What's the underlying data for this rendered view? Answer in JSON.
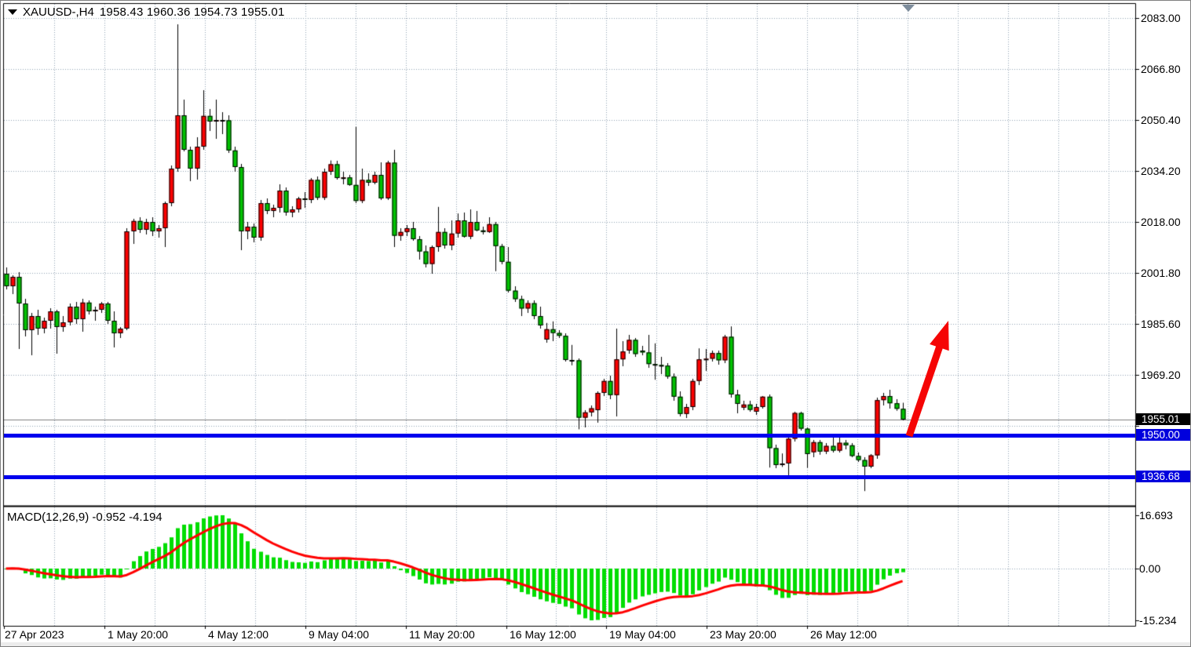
{
  "title": {
    "symbol": "XAUUSD-,H4",
    "open": "1958.43",
    "high": "1960.36",
    "low": "1954.73",
    "close": "1955.01"
  },
  "indicator": {
    "name": "MACD(12,26,9)",
    "main_value": "-0.952",
    "signal_value": "-4.194",
    "axis_labels": [
      "16.693",
      "0.00",
      "-15.234"
    ]
  },
  "price_axis": {
    "gridline_labels": [
      "2083.00",
      "2066.80",
      "2050.40",
      "2034.20",
      "2018.00",
      "2001.80",
      "1985.60",
      "1969.20"
    ],
    "current_price_badge": "1955.01",
    "level_badges": [
      "1950.00",
      "1936.68"
    ]
  },
  "time_axis": {
    "labels": [
      "27 Apr 2023",
      "1 May 20:00",
      "4 May 12:00",
      "9 May 04:00",
      "11 May 20:00",
      "16 May 12:00",
      "19 May 04:00",
      "23 May 20:00",
      "26 May 12:00"
    ]
  },
  "chart_data": {
    "type": "candlestick",
    "symbol": "XAUUSD-",
    "timeframe": "H4",
    "title": "XAUUSD-,H4 1958.43 1960.36 1954.73 1955.01",
    "price_gridlines": [
      2083.0,
      2066.8,
      2050.4,
      2034.2,
      2018.0,
      2001.8,
      1985.6,
      1969.2,
      1953.0
    ],
    "current_price": 1955.01,
    "horizontal_levels": [
      1950.0,
      1936.68
    ],
    "last_bar_ohlc": {
      "open": 1958.43,
      "high": 1960.36,
      "low": 1954.73,
      "close": 1955.01
    },
    "macd": {
      "fast": 12,
      "slow": 26,
      "signal": 9,
      "current_main": -0.952,
      "current_signal": -4.194,
      "axis_max": 16.693,
      "axis_min": -15.234
    },
    "annotations": [
      {
        "type": "arrow-up-right",
        "from_price": 1950.0,
        "to_price": 1986.0,
        "color": "#ff0000"
      }
    ],
    "colors": {
      "bull_body": "#ff0000",
      "bear_body": "#00c300",
      "wick": "#000000",
      "macd_histogram": "#00dd00",
      "macd_signal": "#ff0000",
      "level_line": "#0000ee",
      "grid": "#93a3b3",
      "price_line": "#808080",
      "current_badge_bg": "#000000",
      "level_badge_bg": "#0000dd"
    },
    "candles_ohlc": [
      [
        2001.5,
        2003.5,
        1996.5,
        1997.5
      ],
      [
        1997.5,
        2001.0,
        1995.0,
        2000.5
      ],
      [
        2000.5,
        2002.0,
        1977.5,
        1992.0
      ],
      [
        1992.0,
        1993.5,
        1981.5,
        1983.5
      ],
      [
        1983.5,
        1989.0,
        1975.5,
        1988.0
      ],
      [
        1988.0,
        1990.0,
        1982.0,
        1984.0
      ],
      [
        1984.0,
        1987.5,
        1982.5,
        1986.5
      ],
      [
        1986.5,
        1990.5,
        1984.0,
        1989.5
      ],
      [
        1989.5,
        1990.0,
        1976.0,
        1984.5
      ],
      [
        1984.5,
        1988.0,
        1983.0,
        1986.0
      ],
      [
        1986.0,
        1992.0,
        1985.0,
        1991.0
      ],
      [
        1991.0,
        1992.5,
        1985.5,
        1987.0
      ],
      [
        1987.0,
        1993.5,
        1983.0,
        1992.3
      ],
      [
        1992.3,
        1993.0,
        1988.5,
        1989.5
      ],
      [
        1989.5,
        1991.0,
        1986.5,
        1990.0
      ],
      [
        1990.0,
        1992.5,
        1989.0,
        1992.0
      ],
      [
        1992.0,
        1992.5,
        1985.5,
        1986.5
      ],
      [
        1986.5,
        1989.5,
        1978.0,
        1982.5
      ],
      [
        1982.5,
        1984.5,
        1981.0,
        1984.0
      ],
      [
        1984.0,
        2016.0,
        1983.5,
        2015.0
      ],
      [
        2015.0,
        2019.0,
        2011.0,
        2018.3
      ],
      [
        2018.3,
        2019.5,
        2014.5,
        2015.5
      ],
      [
        2015.5,
        2019.0,
        2014.0,
        2018.0
      ],
      [
        2018.0,
        2019.5,
        2013.5,
        2015.0
      ],
      [
        2015.0,
        2017.0,
        2013.0,
        2016.0
      ],
      [
        2016.0,
        2024.5,
        2010.0,
        2024.0
      ],
      [
        2024.0,
        2036.0,
        2023.0,
        2035.0
      ],
      [
        2035.0,
        2081.0,
        2034.0,
        2052.0
      ],
      [
        2052.0,
        2057.0,
        2040.5,
        2041.0
      ],
      [
        2041.0,
        2042.0,
        2031.0,
        2035.0
      ],
      [
        2035.0,
        2045.0,
        2031.5,
        2042.0
      ],
      [
        2042.0,
        2060.0,
        2041.0,
        2051.8
      ],
      [
        2051.8,
        2054.0,
        2047.0,
        2050.0
      ],
      [
        2050.0,
        2057.0,
        2044.5,
        2050.5
      ],
      [
        2050.5,
        2053.0,
        2046.0,
        2050.4
      ],
      [
        2050.4,
        2052.0,
        2040.0,
        2040.8
      ],
      [
        2040.8,
        2042.0,
        2034.0,
        2035.5
      ],
      [
        2035.5,
        2036.5,
        2009.0,
        2015.0
      ],
      [
        2015.0,
        2018.0,
        2012.5,
        2016.5
      ],
      [
        2016.5,
        2017.5,
        2011.5,
        2013.0
      ],
      [
        2013.0,
        2025.0,
        2012.0,
        2024.0
      ],
      [
        2024.0,
        2025.5,
        2020.5,
        2021.5
      ],
      [
        2021.5,
        2023.5,
        2019.5,
        2022.5
      ],
      [
        2022.5,
        2030.0,
        2021.0,
        2028.0
      ],
      [
        2028.0,
        2029.0,
        2020.0,
        2021.0
      ],
      [
        2021.0,
        2023.0,
        2019.5,
        2022.0
      ],
      [
        2022.0,
        2026.0,
        2021.0,
        2025.5
      ],
      [
        2025.5,
        2027.5,
        2022.5,
        2025.0
      ],
      [
        2025.0,
        2032.0,
        2024.0,
        2031.4
      ],
      [
        2031.4,
        2032.5,
        2025.0,
        2025.7
      ],
      [
        2025.7,
        2035.0,
        2025.0,
        2034.0
      ],
      [
        2034.0,
        2037.6,
        2033.0,
        2036.4
      ],
      [
        2036.4,
        2037.5,
        2031.5,
        2032.0
      ],
      [
        2032.0,
        2034.0,
        2030.0,
        2032.2
      ],
      [
        2032.2,
        2033.0,
        2029.5,
        2029.8
      ],
      [
        2029.8,
        2048.3,
        2024.0,
        2024.7
      ],
      [
        2024.7,
        2035.0,
        2024.0,
        2031.4
      ],
      [
        2031.4,
        2033.5,
        2029.5,
        2030.5
      ],
      [
        2030.5,
        2034.0,
        2030.0,
        2033.0
      ],
      [
        2033.0,
        2037.0,
        2025.0,
        2025.5
      ],
      [
        2025.5,
        2037.5,
        2025.0,
        2036.9
      ],
      [
        2036.9,
        2041.0,
        2010.0,
        2013.6
      ],
      [
        2013.6,
        2016.0,
        2012.0,
        2014.8
      ],
      [
        2014.8,
        2017.0,
        2013.5,
        2016.0
      ],
      [
        2016.0,
        2018.0,
        2012.0,
        2012.5
      ],
      [
        2012.5,
        2013.5,
        2006.0,
        2008.6
      ],
      [
        2008.6,
        2010.5,
        2003.5,
        2004.6
      ],
      [
        2004.6,
        2010.5,
        2001.5,
        2010.0
      ],
      [
        2010.0,
        2022.8,
        2008.5,
        2014.8
      ],
      [
        2014.8,
        2016.0,
        2009.5,
        2010.5
      ],
      [
        2010.5,
        2018.5,
        2009.0,
        2014.3
      ],
      [
        2014.3,
        2020.7,
        2013.0,
        2018.5
      ],
      [
        2018.5,
        2021.0,
        2013.0,
        2013.3
      ],
      [
        2013.3,
        2022.0,
        2012.5,
        2018.0
      ],
      [
        2018.0,
        2021.5,
        2015.0,
        2015.3
      ],
      [
        2015.3,
        2016.5,
        2014.0,
        2014.8
      ],
      [
        2014.8,
        2019.5,
        2014.5,
        2017.3
      ],
      [
        2017.3,
        2018.0,
        2002.3,
        2010.3
      ],
      [
        2010.3,
        2011.0,
        2004.5,
        2005.3
      ],
      [
        2005.3,
        2010.0,
        1995.5,
        1996.1
      ],
      [
        1996.1,
        1997.5,
        1992.5,
        1993.4
      ],
      [
        1993.4,
        1994.5,
        1988.0,
        1990.4
      ],
      [
        1990.4,
        1993.0,
        1989.0,
        1992.1
      ],
      [
        1992.1,
        1993.0,
        1987.0,
        1988.0
      ],
      [
        1988.0,
        1991.0,
        1984.0,
        1985.0
      ],
      [
        1980.5,
        1985.8,
        1979.5,
        1983.8
      ],
      [
        1983.8,
        1986.3,
        1980.0,
        1982.6
      ],
      [
        1982.6,
        1983.5,
        1981.0,
        1981.7
      ],
      [
        1981.7,
        1982.5,
        1973.5,
        1974.0
      ],
      [
        1974.0,
        1978.8,
        1972.3,
        1973.9
      ],
      [
        1973.9,
        1974.5,
        1951.9,
        1955.6
      ],
      [
        1955.6,
        1958.0,
        1952.5,
        1957.3
      ],
      [
        1957.3,
        1959.5,
        1956.0,
        1958.6
      ],
      [
        1958.0,
        1964.0,
        1954.0,
        1963.5
      ],
      [
        1963.5,
        1968.0,
        1962.5,
        1967.3
      ],
      [
        1967.3,
        1969.0,
        1961.5,
        1962.8
      ],
      [
        1962.8,
        1984.0,
        1956.0,
        1974.2
      ],
      [
        1974.2,
        1980.0,
        1972.0,
        1976.7
      ],
      [
        1977.0,
        1982.0,
        1976.0,
        1980.4
      ],
      [
        1980.4,
        1981.0,
        1975.0,
        1975.9
      ],
      [
        1977.0,
        1978.5,
        1975.5,
        1976.4
      ],
      [
        1976.4,
        1982.0,
        1971.5,
        1972.7
      ],
      [
        1972.7,
        1979.3,
        1967.7,
        1972.4
      ],
      [
        1972.4,
        1975.0,
        1969.5,
        1972.2
      ],
      [
        1972.2,
        1973.0,
        1968.0,
        1968.7
      ],
      [
        1968.7,
        1969.7,
        1961.0,
        1962.3
      ],
      [
        1962.3,
        1964.0,
        1956.0,
        1956.8
      ],
      [
        1956.8,
        1960.0,
        1955.5,
        1959.0
      ],
      [
        1959.0,
        1968.0,
        1958.0,
        1967.3
      ],
      [
        1967.3,
        1977.7,
        1966.0,
        1974.2
      ],
      [
        1974.2,
        1977.5,
        1970.5,
        1974.4
      ],
      [
        1974.4,
        1977.0,
        1973.5,
        1976.2
      ],
      [
        1976.2,
        1977.0,
        1972.5,
        1973.9
      ],
      [
        1973.9,
        1982.0,
        1973.0,
        1981.4
      ],
      [
        1981.4,
        1984.7,
        1962.0,
        1963.0
      ],
      [
        1963.0,
        1964.5,
        1957.0,
        1960.0
      ],
      [
        1958.8,
        1961.0,
        1958.0,
        1959.8
      ],
      [
        1959.8,
        1961.0,
        1957.5,
        1958.1
      ],
      [
        1957.5,
        1960.0,
        1956.5,
        1959.0
      ],
      [
        1959.0,
        1962.5,
        1958.5,
        1962.3
      ],
      [
        1962.3,
        1963.0,
        1939.7,
        1945.9
      ],
      [
        1945.9,
        1947.0,
        1939.5,
        1940.5
      ],
      [
        1940.5,
        1944.2,
        1939.9,
        1941.0
      ],
      [
        1941.0,
        1949.5,
        1936.7,
        1948.9
      ],
      [
        1948.9,
        1957.5,
        1948.0,
        1957.1
      ],
      [
        1957.1,
        1957.5,
        1951.5,
        1952.1
      ],
      [
        1952.1,
        1952.5,
        1939.6,
        1944.0
      ],
      [
        1944.6,
        1948.5,
        1943.0,
        1947.8
      ],
      [
        1947.8,
        1948.5,
        1943.8,
        1944.8
      ],
      [
        1944.8,
        1947.5,
        1944.0,
        1946.6
      ],
      [
        1946.6,
        1950.0,
        1944.5,
        1945.1
      ],
      [
        1945.1,
        1949.5,
        1944.5,
        1947.6
      ],
      [
        1947.6,
        1948.5,
        1945.5,
        1946.8
      ],
      [
        1946.8,
        1947.5,
        1943.0,
        1943.4
      ],
      [
        1943.4,
        1944.5,
        1941.5,
        1942.1
      ],
      [
        1942.1,
        1943.0,
        1932.2,
        1940.0
      ],
      [
        1940.0,
        1944.0,
        1939.5,
        1943.6
      ],
      [
        1943.6,
        1962.0,
        1942.5,
        1961.2
      ],
      [
        1961.2,
        1963.5,
        1959.5,
        1962.5
      ],
      [
        1962.5,
        1964.5,
        1958.5,
        1960.2
      ],
      [
        1960.2,
        1961.5,
        1957.8,
        1958.43
      ],
      [
        1958.43,
        1960.36,
        1954.73,
        1955.01
      ]
    ]
  }
}
